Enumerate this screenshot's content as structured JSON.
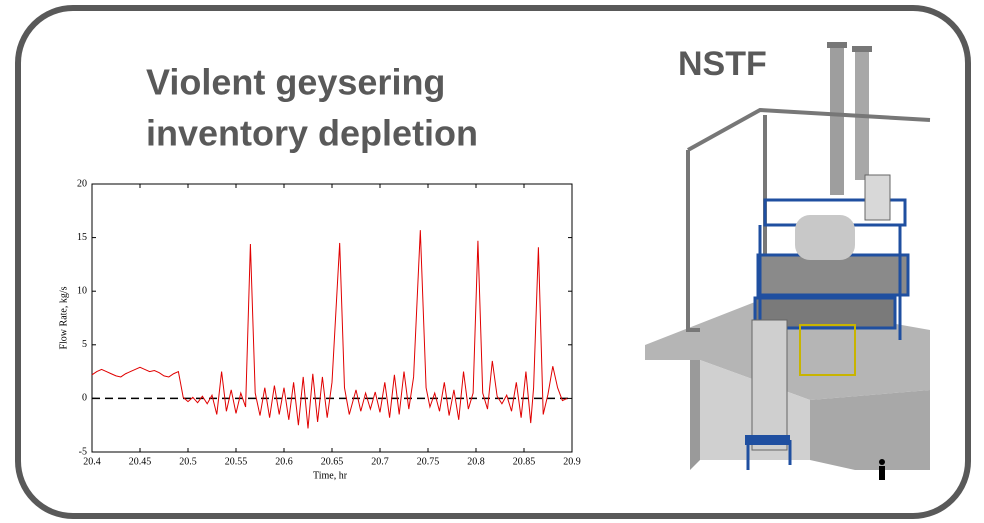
{
  "facility_label": "NSTF",
  "chart_data": {
    "type": "line",
    "title": [
      "Violent geysering",
      "inventory depletion"
    ],
    "xlabel": "Time, hr",
    "ylabel": "Flow Rate, kg/s",
    "color": "#e00000",
    "x": [
      20.4,
      20.405,
      20.41,
      20.415,
      20.42,
      20.425,
      20.43,
      20.435,
      20.44,
      20.445,
      20.45,
      20.455,
      20.46,
      20.465,
      20.47,
      20.475,
      20.48,
      20.485,
      20.49,
      20.495,
      20.5,
      20.505,
      20.51,
      20.515,
      20.52,
      20.525,
      20.53,
      20.535,
      20.54,
      20.545,
      20.55,
      20.555,
      20.56,
      20.565,
      20.57,
      20.575,
      20.58,
      20.585,
      20.59,
      20.595,
      20.6,
      20.605,
      20.61,
      20.615,
      20.62,
      20.625,
      20.63,
      20.635,
      20.64,
      20.645,
      20.65,
      20.658,
      20.663,
      20.668,
      20.675,
      20.68,
      20.685,
      20.69,
      20.695,
      20.7,
      20.705,
      20.71,
      20.715,
      20.72,
      20.725,
      20.73,
      20.735,
      20.742,
      20.748,
      20.752,
      20.757,
      20.762,
      20.767,
      20.772,
      20.777,
      20.782,
      20.787,
      20.792,
      20.797,
      20.802,
      20.807,
      20.812,
      20.817,
      20.822,
      20.827,
      20.832,
      20.837,
      20.842,
      20.847,
      20.852,
      20.857,
      20.86,
      20.865,
      20.87,
      20.875,
      20.88,
      20.885,
      20.89,
      20.895
    ],
    "values": [
      2.2,
      2.5,
      2.7,
      2.5,
      2.3,
      2.1,
      2.0,
      2.3,
      2.5,
      2.7,
      2.9,
      2.7,
      2.5,
      2.6,
      2.4,
      2.1,
      2.0,
      2.3,
      2.5,
      0.1,
      -0.3,
      0.1,
      -0.4,
      0.2,
      -0.5,
      0.3,
      -1.5,
      2.5,
      -1.2,
      0.8,
      -1.4,
      0.5,
      -0.8,
      14.4,
      0.5,
      -1.6,
      1.0,
      -1.8,
      1.2,
      -1.5,
      1.0,
      -2.0,
      1.5,
      -2.5,
      2.0,
      -2.8,
      2.3,
      -2.2,
      2.0,
      -1.8,
      1.5,
      14.5,
      1.0,
      -1.5,
      0.8,
      -1.2,
      0.5,
      -1.0,
      0.6,
      -1.3,
      1.5,
      -1.8,
      2.2,
      -1.5,
      2.5,
      -1.0,
      2.0,
      15.7,
      1.0,
      -0.8,
      0.5,
      -1.2,
      1.5,
      -1.6,
      0.8,
      -2.0,
      2.5,
      -1.0,
      0.5,
      14.7,
      0.5,
      -1.0,
      3.5,
      0.2,
      -0.5,
      0.3,
      -1.2,
      1.5,
      -1.8,
      2.5,
      -2.3,
      1.0,
      14.1,
      -1.5,
      0.4,
      3.0,
      1.0,
      -0.2,
      0
    ],
    "xlim": [
      20.4,
      20.9
    ],
    "xticks": [
      20.4,
      20.45,
      20.5,
      20.55,
      20.6,
      20.65,
      20.7,
      20.75,
      20.8,
      20.85,
      20.9
    ],
    "ylim": [
      -5,
      20
    ],
    "yticks": [
      -5,
      0,
      5,
      10,
      15,
      20
    ],
    "hline": 0,
    "hline_color": "#000000"
  }
}
